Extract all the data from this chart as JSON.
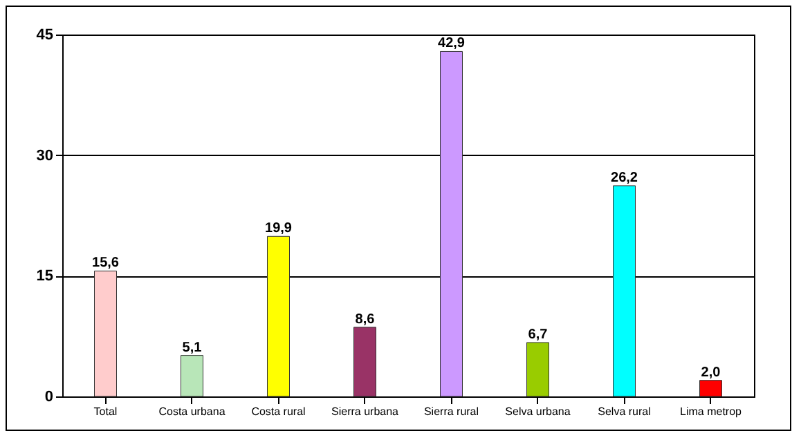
{
  "chart_data": {
    "type": "bar",
    "categories": [
      "Total",
      "Costa urbana",
      "Costa rural",
      "Sierra urbana",
      "Sierra rural",
      "Selva urbana",
      "Selva rural",
      "Lima metrop"
    ],
    "values": [
      15.6,
      5.1,
      19.9,
      8.6,
      42.9,
      6.7,
      26.2,
      2.0
    ],
    "colors": [
      "#ffcccc",
      "#b8e6b8",
      "#ffff00",
      "#993366",
      "#cc99ff",
      "#99cc00",
      "#00ffff",
      "#ff0000"
    ],
    "value_labels": [
      "15,6",
      "5,1",
      "19,9",
      "8,6",
      "42,9",
      "6,7",
      "26,2",
      "2,0"
    ],
    "ylim": [
      0,
      45
    ],
    "yticks": [
      0,
      15,
      30,
      45
    ],
    "grid": "y"
  }
}
